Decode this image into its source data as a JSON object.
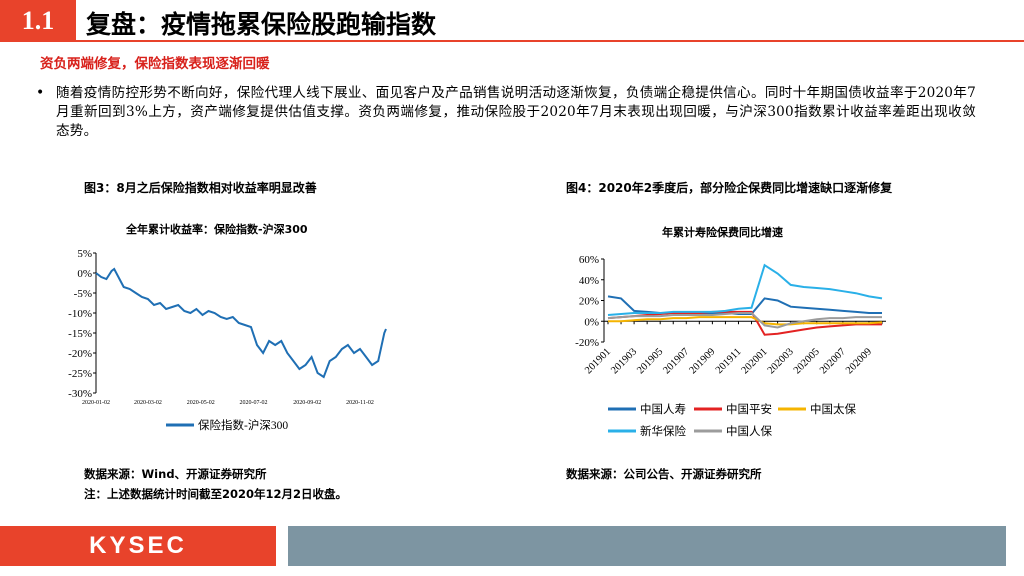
{
  "header": {
    "section_number": "1.1",
    "title": "复盘：疫情拖累保险股跑输指数",
    "subtitle": "资负两端修复，保险指数表现逐渐回暖"
  },
  "body": {
    "bullet": "•",
    "paragraph": "随着疫情防控形势不断向好，保险代理人线下展业、面见客户及产品销售说明活动逐渐恢复，负债端企稳提供信心。同时十年期国债收益率于2020年7月重新回到3%上方，资产端修复提供估值支撑。资负两端修复，推动保险股于2020年7月末表现出现回暖，与沪深300指数累计收益率差距出现收敛态势。"
  },
  "figure3": {
    "caption": "图3：8月之后保险指数相对收益率明显改善",
    "source": "数据来源：Wind、开源证券研究所",
    "note": "注：上述数据统计时间截至2020年12月2日收盘。"
  },
  "figure4": {
    "caption": "图4：2020年2季度后，部分险企保费同比增速缺口逐渐修复",
    "source": "数据来源：公司公告、开源证券研究所"
  },
  "footer": {
    "logo": "KYSEC"
  },
  "chart_data": [
    {
      "type": "line",
      "title": "全年累计收益率：保险指数-沪深300",
      "xlabel": "",
      "ylabel": "",
      "x_tick_labels": [
        "2020-01-02",
        "2020-03-02",
        "2020-05-02",
        "2020-07-02",
        "2020-09-02",
        "2020-11-02"
      ],
      "y_tick_labels": [
        "5%",
        "0%",
        "-5%",
        "-10%",
        "-15%",
        "-20%",
        "-25%",
        "-30%"
      ],
      "ylim": [
        -30,
        5
      ],
      "xlim": [
        "2020-01-02",
        "2020-12-02"
      ],
      "grid": false,
      "legend_position": "bottom",
      "color": "#1f6fb4",
      "series": [
        {
          "name": "保险指数-沪深300",
          "x": [
            "2020-01-02",
            "2020-01-08",
            "2020-01-14",
            "2020-01-20",
            "2020-01-23",
            "2020-02-03",
            "2020-02-10",
            "2020-02-17",
            "2020-02-24",
            "2020-03-02",
            "2020-03-09",
            "2020-03-16",
            "2020-03-23",
            "2020-03-30",
            "2020-04-06",
            "2020-04-13",
            "2020-04-20",
            "2020-04-27",
            "2020-05-04",
            "2020-05-11",
            "2020-05-18",
            "2020-05-25",
            "2020-06-01",
            "2020-06-08",
            "2020-06-15",
            "2020-06-22",
            "2020-06-29",
            "2020-07-06",
            "2020-07-13",
            "2020-07-20",
            "2020-07-27",
            "2020-08-03",
            "2020-08-10",
            "2020-08-17",
            "2020-08-24",
            "2020-08-31",
            "2020-09-07",
            "2020-09-14",
            "2020-09-21",
            "2020-09-28",
            "2020-10-05",
            "2020-10-12",
            "2020-10-19",
            "2020-10-26",
            "2020-11-02",
            "2020-11-09",
            "2020-11-16",
            "2020-11-23",
            "2020-11-30",
            "2020-12-02"
          ],
          "values": [
            0,
            -1,
            -1.5,
            0.5,
            1,
            -3.5,
            -4,
            -5,
            -6,
            -6.5,
            -8,
            -7.5,
            -9,
            -8.5,
            -8,
            -9.5,
            -10,
            -9,
            -10.5,
            -9.5,
            -10,
            -11,
            -11.5,
            -11,
            -12.5,
            -13,
            -13.5,
            -18,
            -20,
            -17,
            -18,
            -17,
            -20,
            -22,
            -24,
            -23,
            -21,
            -25,
            -26,
            -22,
            -21,
            -19,
            -18,
            -20,
            -19,
            -21,
            -23,
            -22,
            -15,
            -14
          ]
        }
      ]
    },
    {
      "type": "line",
      "title": "年累计寿险保费同比增速",
      "xlabel": "",
      "ylabel": "",
      "categories": [
        "201901",
        "201902",
        "201903",
        "201904",
        "201905",
        "201906",
        "201907",
        "201908",
        "201909",
        "201910",
        "201911",
        "201912",
        "202001",
        "202002",
        "202003",
        "202004",
        "202005",
        "202006",
        "202007",
        "202008",
        "202009",
        "202010"
      ],
      "x_tick_labels": [
        "201901",
        "201903",
        "201905",
        "201907",
        "201909",
        "201911",
        "202001",
        "202003",
        "202005",
        "202007",
        "202009"
      ],
      "y_tick_labels": [
        "60%",
        "40%",
        "20%",
        "0%",
        "-20%"
      ],
      "ylim": [
        -20,
        60
      ],
      "grid": false,
      "legend_position": "bottom",
      "series": [
        {
          "name": "中国人寿",
          "color": "#1f6fb4",
          "values": [
            24,
            22,
            10,
            9,
            8,
            8,
            8,
            8,
            8,
            8,
            7,
            7,
            22,
            20,
            14,
            13,
            12,
            11,
            10,
            9,
            8,
            8
          ]
        },
        {
          "name": "中国平安",
          "color": "#e32222",
          "values": [
            3,
            4,
            5,
            6,
            7,
            8,
            8,
            8,
            9,
            9,
            9,
            9,
            -13,
            -12,
            -10,
            -8,
            -6,
            -5,
            -4,
            -3,
            -3,
            -3
          ]
        },
        {
          "name": "中国太保",
          "color": "#f5b400",
          "values": [
            0,
            0,
            1,
            2,
            2,
            3,
            3,
            4,
            4,
            4,
            4,
            4,
            -2,
            -3,
            -3,
            -2,
            -2,
            -2,
            -2,
            -2,
            -2,
            -1
          ]
        },
        {
          "name": "新华保险",
          "color": "#2ab0e8",
          "values": [
            6,
            7,
            8,
            8,
            8,
            9,
            9,
            9,
            9,
            10,
            12,
            13,
            54,
            46,
            35,
            33,
            32,
            31,
            29,
            27,
            24,
            22
          ]
        },
        {
          "name": "中国人保",
          "color": "#9c9c9c",
          "values": [
            3,
            4,
            5,
            5,
            5,
            6,
            6,
            6,
            6,
            7,
            8,
            8,
            -4,
            -6,
            -2,
            0,
            2,
            3,
            3,
            4,
            4,
            4
          ]
        }
      ]
    }
  ]
}
